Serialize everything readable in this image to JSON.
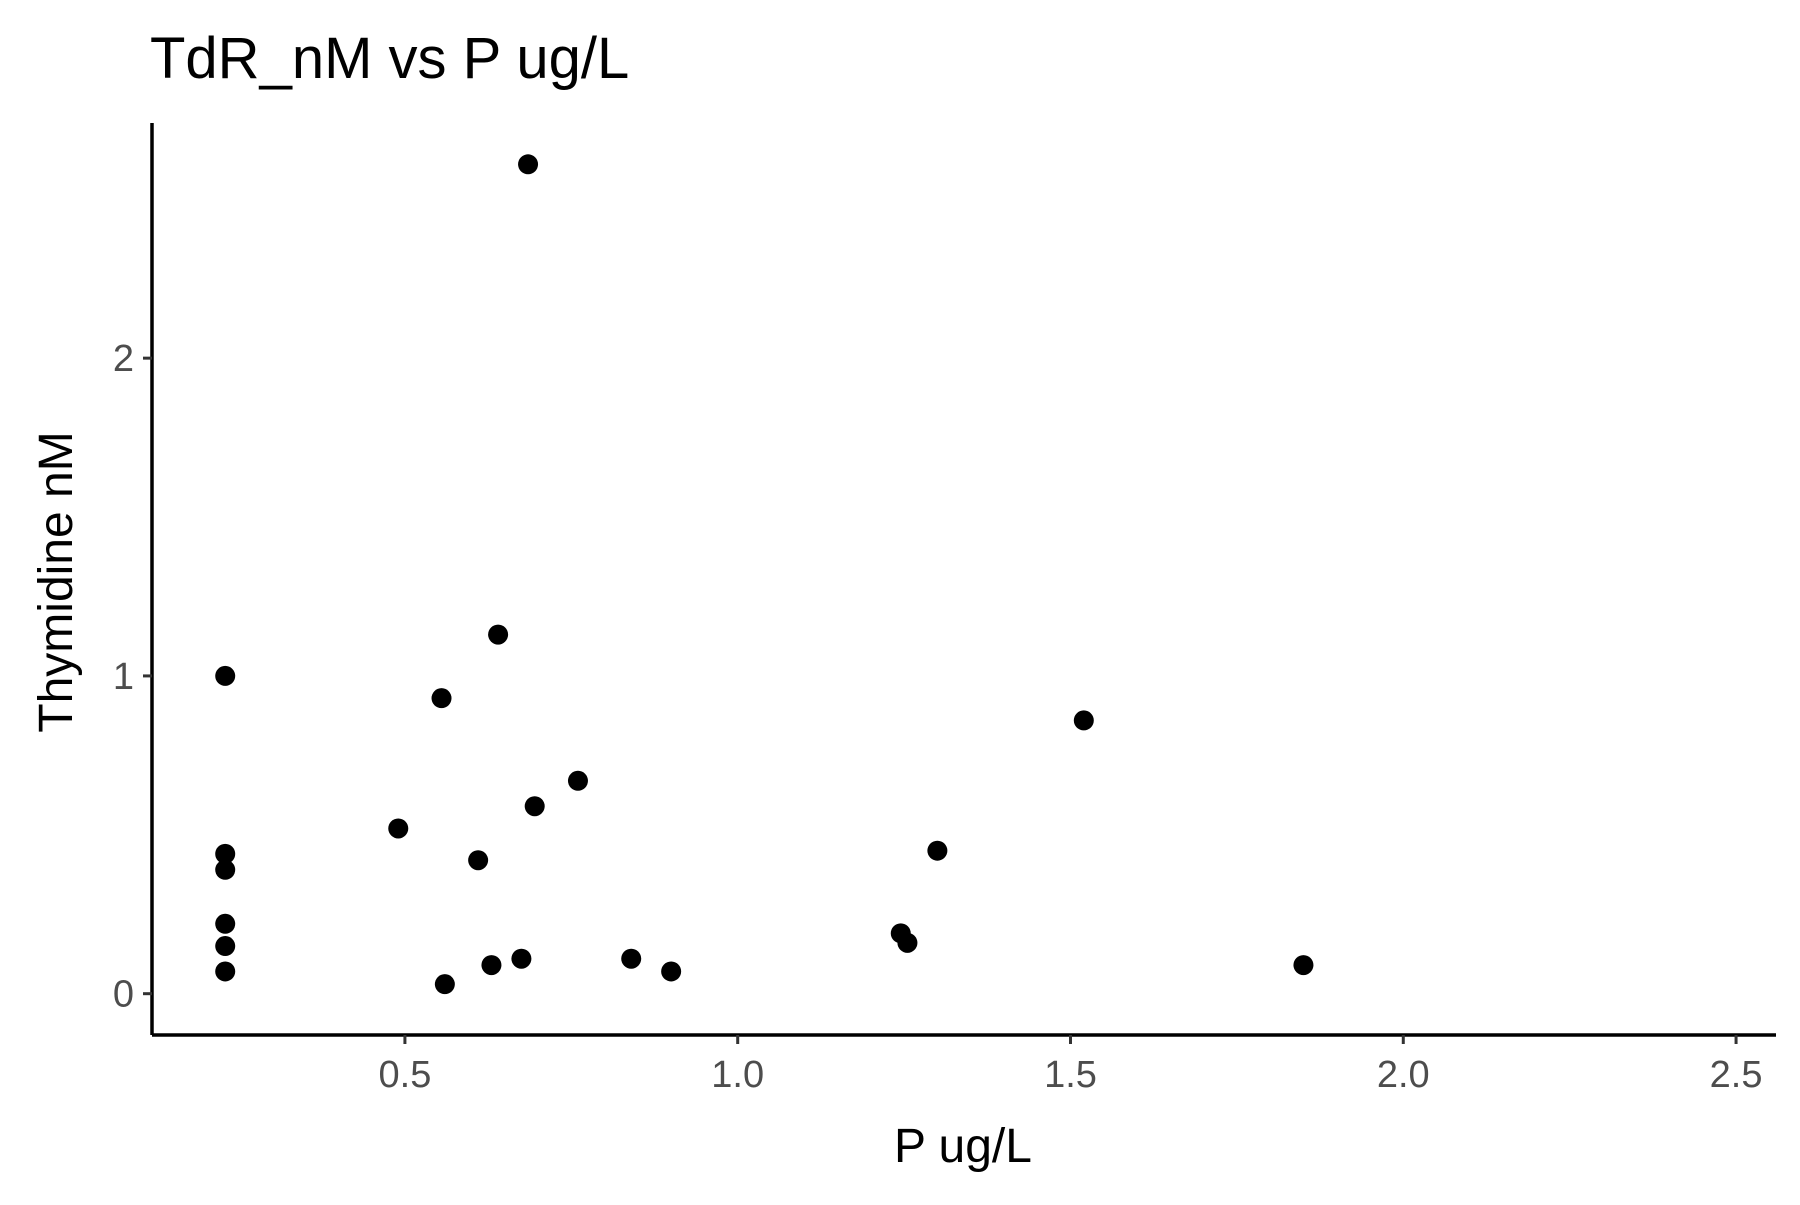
{
  "chart_data": {
    "type": "scatter",
    "title": "TdR_nM vs P ug/L",
    "xlabel": "P ug/L",
    "ylabel": "Thymidine nM",
    "xlim": [
      0.12,
      2.56
    ],
    "ylim": [
      -0.13,
      2.74
    ],
    "x_ticks": [
      {
        "value": 0.5,
        "label": "0.5"
      },
      {
        "value": 1.0,
        "label": "1.0"
      },
      {
        "value": 1.5,
        "label": "1.5"
      },
      {
        "value": 2.0,
        "label": "2.0"
      },
      {
        "value": 2.5,
        "label": "2.5"
      }
    ],
    "y_ticks": [
      {
        "value": 0,
        "label": "0"
      },
      {
        "value": 1,
        "label": "1"
      },
      {
        "value": 2,
        "label": "2"
      }
    ],
    "grid": false,
    "legend": "none",
    "point_color": "#000000",
    "points": [
      {
        "x": 0.23,
        "y": 1.0
      },
      {
        "x": 0.23,
        "y": 0.44
      },
      {
        "x": 0.23,
        "y": 0.39
      },
      {
        "x": 0.23,
        "y": 0.22
      },
      {
        "x": 0.23,
        "y": 0.15
      },
      {
        "x": 0.23,
        "y": 0.07
      },
      {
        "x": 0.49,
        "y": 0.52
      },
      {
        "x": 0.555,
        "y": 0.93
      },
      {
        "x": 0.56,
        "y": 0.03
      },
      {
        "x": 0.61,
        "y": 0.42
      },
      {
        "x": 0.63,
        "y": 0.09
      },
      {
        "x": 0.64,
        "y": 1.13
      },
      {
        "x": 0.675,
        "y": 0.11
      },
      {
        "x": 0.685,
        "y": 2.61
      },
      {
        "x": 0.695,
        "y": 0.59
      },
      {
        "x": 0.76,
        "y": 0.67
      },
      {
        "x": 0.84,
        "y": 0.11
      },
      {
        "x": 0.9,
        "y": 0.07
      },
      {
        "x": 1.245,
        "y": 0.19
      },
      {
        "x": 1.255,
        "y": 0.16
      },
      {
        "x": 1.3,
        "y": 0.45
      },
      {
        "x": 1.52,
        "y": 0.86
      },
      {
        "x": 1.85,
        "y": 0.09
      }
    ]
  }
}
